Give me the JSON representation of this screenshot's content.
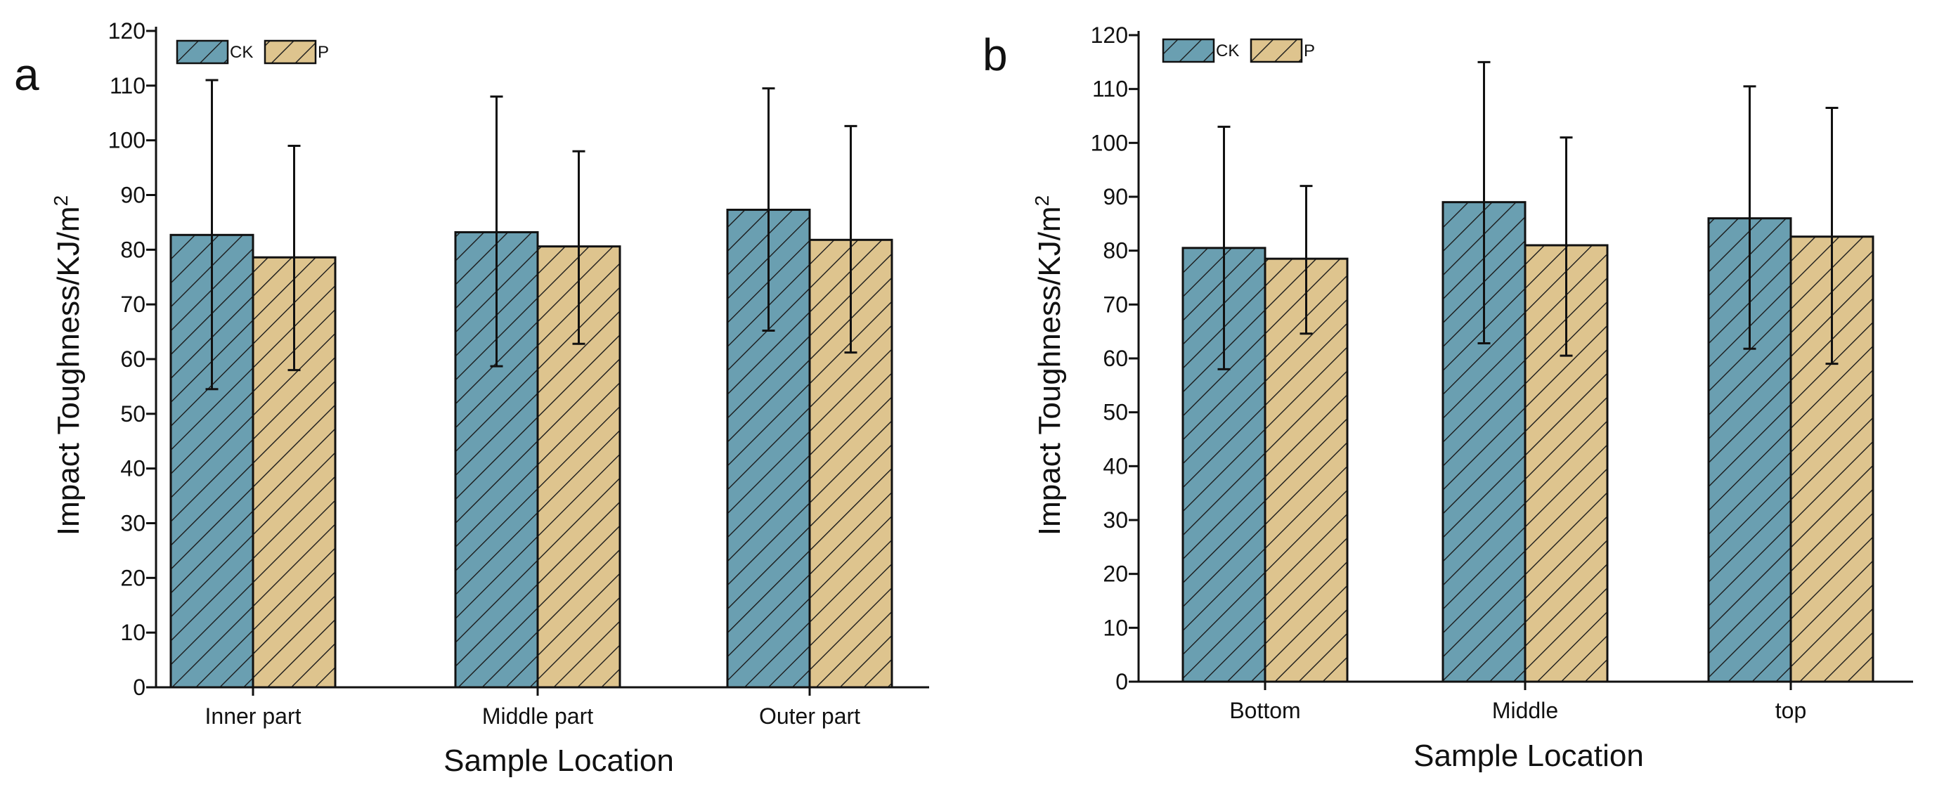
{
  "chart_data": [
    {
      "type": "bar",
      "panel_label": "a",
      "categories": [
        "Inner part",
        "Middle part",
        "Outer part"
      ],
      "series": [
        {
          "name": "CK",
          "values": [
            82.7,
            83.2,
            87.3
          ],
          "error_low": [
            54.5,
            58.7,
            65.2
          ],
          "error_high": [
            111,
            108,
            109.5
          ]
        },
        {
          "name": "P",
          "values": [
            78.6,
            80.6,
            81.8
          ],
          "error_low": [
            58,
            62.8,
            61.2
          ],
          "error_high": [
            99,
            98,
            102.6
          ]
        }
      ],
      "title": "",
      "xlabel": "Sample Location",
      "ylabel": "Impact Toughness/KJ/m²",
      "ylabel_main": "Impact Toughness/KJ/m",
      "ylabel_sup": "2",
      "ylim": [
        0,
        120
      ],
      "yticks": [
        0,
        10,
        20,
        30,
        40,
        50,
        60,
        70,
        80,
        90,
        100,
        110,
        120
      ],
      "legend_position": "top-left",
      "grid": false
    },
    {
      "type": "bar",
      "panel_label": "b",
      "categories": [
        "Bottom",
        "Middle",
        "top"
      ],
      "series": [
        {
          "name": "CK",
          "values": [
            80.5,
            89.0,
            86.0
          ],
          "error_low": [
            58,
            62.8,
            61.8
          ],
          "error_high": [
            103,
            115,
            110.5
          ]
        },
        {
          "name": "P",
          "values": [
            78.5,
            81.0,
            82.6
          ],
          "error_low": [
            64.6,
            60.5,
            59
          ],
          "error_high": [
            92,
            101,
            106.5
          ]
        }
      ],
      "title": "",
      "xlabel": "Sample Location",
      "ylabel": "Impact Toughness/KJ/m²",
      "ylabel_main": "Impact Toughness/KJ/m",
      "ylabel_sup": "2",
      "ylim": [
        0,
        120
      ],
      "yticks": [
        0,
        10,
        20,
        30,
        40,
        50,
        60,
        70,
        80,
        90,
        100,
        110,
        120
      ],
      "legend_position": "top-left",
      "grid": false
    }
  ],
  "colors": {
    "ck_fill": "#6a9fb1",
    "p_fill": "#dec48e",
    "hatch": "#1a1a1a",
    "axis": "#111111"
  }
}
